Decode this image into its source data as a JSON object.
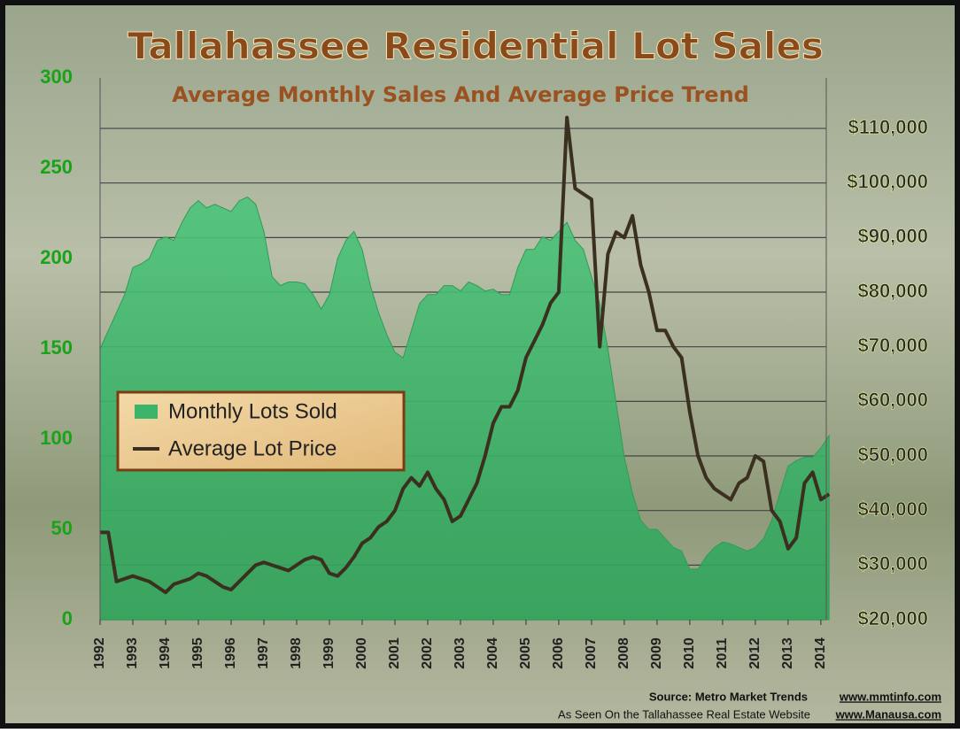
{
  "chart_data": {
    "type": "area-line",
    "title": "Tallahassee Residential Lot Sales",
    "subtitle": "Average Monthly Sales And Average Price Trend",
    "x": [
      1992,
      1992.25,
      1992.5,
      1992.75,
      1993,
      1993.25,
      1993.5,
      1993.75,
      1994,
      1994.25,
      1994.5,
      1994.75,
      1995,
      1995.25,
      1995.5,
      1995.75,
      1996,
      1996.25,
      1996.5,
      1996.75,
      1997,
      1997.25,
      1997.5,
      1997.75,
      1998,
      1998.25,
      1998.5,
      1998.75,
      1999,
      1999.25,
      1999.5,
      1999.75,
      2000,
      2000.25,
      2000.5,
      2000.75,
      2001,
      2001.25,
      2001.5,
      2001.75,
      2002,
      2002.25,
      2002.5,
      2002.75,
      2003,
      2003.25,
      2003.5,
      2003.75,
      2004,
      2004.25,
      2004.5,
      2004.75,
      2005,
      2005.25,
      2005.5,
      2005.75,
      2006,
      2006.25,
      2006.5,
      2006.75,
      2007,
      2007.25,
      2007.5,
      2007.75,
      2008,
      2008.25,
      2008.5,
      2008.75,
      2009,
      2009.25,
      2009.5,
      2009.75,
      2010,
      2010.25,
      2010.5,
      2010.75,
      2011,
      2011.25,
      2011.5,
      2011.75,
      2012,
      2012.25,
      2012.5,
      2012.75,
      2013,
      2013.25,
      2013.5,
      2013.75,
      2014,
      2014.25
    ],
    "series": [
      {
        "name": "Monthly Lots Sold",
        "color": "#3cb46a",
        "axis": "y",
        "values": [
          150,
          160,
          170,
          180,
          195,
          197,
          200,
          210,
          212,
          210,
          220,
          228,
          232,
          228,
          230,
          228,
          226,
          232,
          234,
          230,
          215,
          190,
          185,
          187,
          187,
          186,
          180,
          172,
          180,
          200,
          210,
          215,
          205,
          185,
          170,
          158,
          148,
          145,
          160,
          175,
          180,
          180,
          185,
          185,
          182,
          187,
          185,
          182,
          183,
          180,
          180,
          195,
          205,
          205,
          212,
          210,
          215,
          220,
          210,
          205,
          190,
          175,
          150,
          120,
          90,
          70,
          55,
          50,
          50,
          45,
          40,
          38,
          28,
          28,
          35,
          40,
          43,
          42,
          40,
          38,
          40,
          45,
          55,
          70,
          85,
          88,
          90,
          90,
          95,
          102
        ]
      },
      {
        "name": "Average Lot Price",
        "color": "#3b3020",
        "axis": "y2",
        "values": [
          36000,
          36000,
          27000,
          27500,
          28000,
          27500,
          27000,
          26000,
          25000,
          26500,
          27000,
          27500,
          28500,
          28000,
          27000,
          26000,
          25500,
          27000,
          28500,
          30000,
          30500,
          30000,
          29500,
          29000,
          30000,
          31000,
          31500,
          31000,
          28500,
          28000,
          29500,
          31500,
          34000,
          35000,
          37000,
          38000,
          40000,
          44000,
          46000,
          44500,
          47000,
          44000,
          42000,
          38000,
          39000,
          42000,
          45000,
          50000,
          56000,
          59000,
          59000,
          62000,
          68000,
          71000,
          74000,
          78000,
          80000,
          112000,
          99000,
          98000,
          97000,
          70000,
          87000,
          91000,
          90000,
          94000,
          85000,
          80000,
          73000,
          73000,
          70000,
          68000,
          58000,
          50000,
          46000,
          44000,
          43000,
          42000,
          45000,
          46000,
          50000,
          49000,
          40000,
          38000,
          33000,
          35000,
          45000,
          47000,
          42000,
          43000
        ]
      }
    ],
    "xlim": [
      1992,
      2014.3
    ],
    "xticks": [
      1992,
      1993,
      1994,
      1995,
      1996,
      1997,
      1998,
      1999,
      2000,
      2001,
      2002,
      2003,
      2004,
      2005,
      2006,
      2007,
      2008,
      2009,
      2010,
      2011,
      2012,
      2013,
      2014
    ],
    "ylim": [
      0,
      300
    ],
    "yticks": [
      0,
      50,
      100,
      150,
      200,
      250,
      300
    ],
    "y2lim": [
      20000,
      119250
    ],
    "y2ticks": [
      {
        "value": 20000,
        "label": "$20,000"
      },
      {
        "value": 30000,
        "label": "$30,000"
      },
      {
        "value": 40000,
        "label": "$40,000"
      },
      {
        "value": 50000,
        "label": "$50,000"
      },
      {
        "value": 60000,
        "label": "$60,000"
      },
      {
        "value": 70000,
        "label": "$70,000"
      },
      {
        "value": 80000,
        "label": "$80,000"
      },
      {
        "value": 90000,
        "label": "$90,000"
      },
      {
        "value": 100000,
        "label": "$100,000"
      },
      {
        "value": 110000,
        "label": "$110,000"
      }
    ],
    "grid": true,
    "legend": "left",
    "source": "Source:  Metro Market Trends",
    "source_url": "www.mmtinfo.com",
    "credit": "As Seen On the Tallahassee Real Estate Website",
    "credit_url": "www.Manausa.com"
  }
}
